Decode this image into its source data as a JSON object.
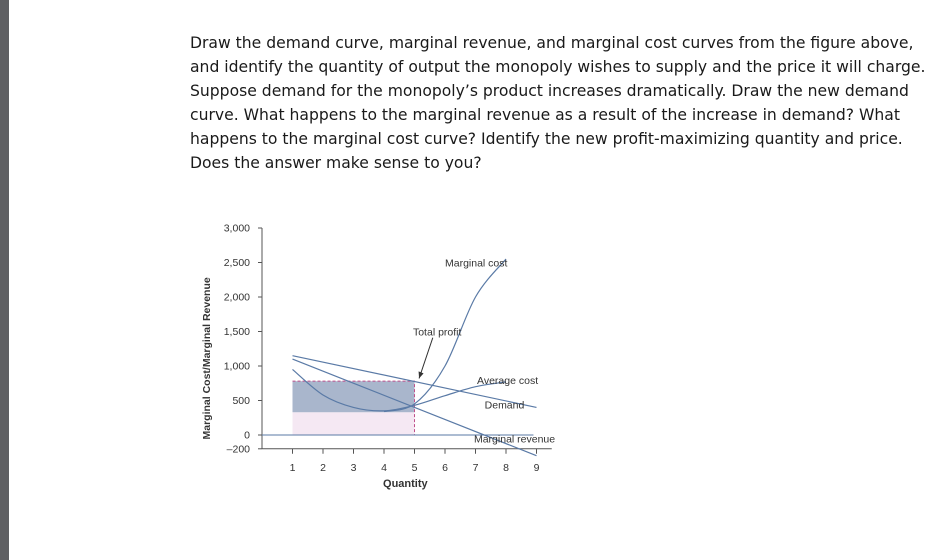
{
  "question_text": "Draw the demand curve, marginal revenue, and marginal cost curves from the figure above, and identify the quantity of output the monopoly wishes to supply and the price it will charge. Suppose demand for the monopoly’s product increases dramatically. Draw the new demand curve. What happens to the marginal revenue as a result of the increase in demand? What happens to the marginal cost curve? Identify the new profit-maximizing quantity and price. Does the answer make sense to you?",
  "chart_data": {
    "type": "line",
    "xlabel": "Quantity",
    "ylabel": "Marginal Cost/Marginal Revenue",
    "xlim": [
      0,
      9.5
    ],
    "ylim": [
      -200,
      3000
    ],
    "x_ticks": [
      1,
      2,
      3,
      4,
      5,
      6,
      7,
      8,
      9
    ],
    "y_ticks": [
      {
        "value": 3000,
        "label": "3,000"
      },
      {
        "value": 2500,
        "label": "2,500"
      },
      {
        "value": 2000,
        "label": "2,000"
      },
      {
        "value": 1500,
        "label": "1,500"
      },
      {
        "value": 1000,
        "label": "1,000"
      },
      {
        "value": 500,
        "label": "500"
      },
      {
        "value": 0,
        "label": "0"
      },
      {
        "value": -200,
        "label": "–200"
      }
    ],
    "series": [
      {
        "name": "Demand",
        "x": [
          1,
          9
        ],
        "y": [
          1150,
          400
        ]
      },
      {
        "name": "Marginal revenue",
        "x": [
          1,
          9
        ],
        "y": [
          1100,
          -300
        ]
      },
      {
        "name": "Marginal cost",
        "x": [
          4,
          5,
          6,
          7,
          8
        ],
        "y": [
          340,
          450,
          1000,
          2000,
          2550
        ]
      },
      {
        "name": "Average cost",
        "x": [
          1,
          2,
          3,
          4,
          5,
          6,
          7,
          8
        ],
        "y": [
          950,
          580,
          400,
          350,
          430,
          570,
          700,
          770
        ]
      }
    ],
    "profit_area": {
      "quantity": 5,
      "price": 780,
      "average_cost": 330
    },
    "annotations": [
      "Total profit",
      "Marginal cost",
      "Average cost",
      "Demand",
      "Marginal revenue"
    ],
    "colors": {
      "curves": "#5a7aa6",
      "profit": "#a9b6cc",
      "cost_area": "#f5e8f3",
      "dashed": "#c0508a"
    }
  }
}
